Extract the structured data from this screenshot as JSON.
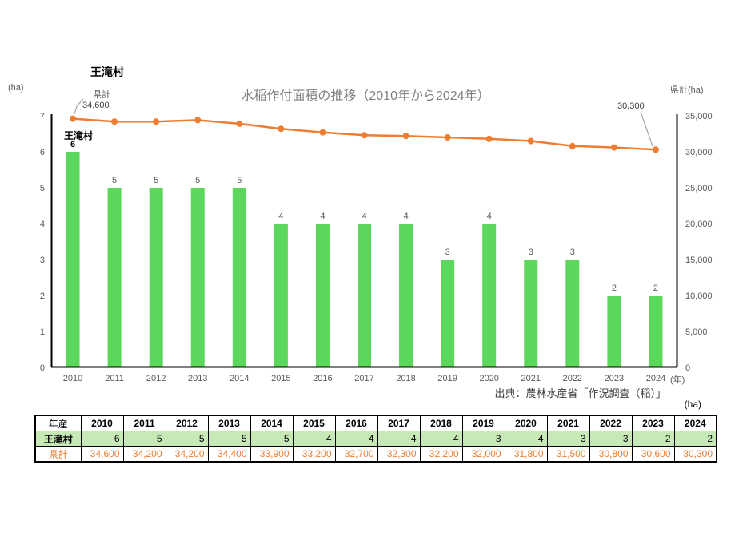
{
  "chart": {
    "small_title": "王滝村",
    "main_title": "水稲作付面積の推移（2010年から2024年）",
    "left_axis_unit": "(ha)",
    "right_axis_unit": "県計(ha)",
    "x_axis_unit": "(年)",
    "bar_series_label": "王滝村",
    "line_annotation_label": "県計",
    "line_annotation_first_value": "34,600",
    "line_annotation_last_value": "30,300",
    "source": "出典：農林水産省「作況調査（稲）」",
    "colors": {
      "bar": "#5bd75b",
      "line": "#ed7d31",
      "axis": "#000000",
      "tick_text": "#595959",
      "bar_label": "#595959",
      "first_bar_label": "#000000",
      "title_gray": "#7f7f7f",
      "leader": "#a6a6a6"
    }
  },
  "chart_data": {
    "type": "bar",
    "categories": [
      "2010",
      "2011",
      "2012",
      "2013",
      "2014",
      "2015",
      "2016",
      "2017",
      "2018",
      "2019",
      "2020",
      "2021",
      "2022",
      "2023",
      "2024"
    ],
    "series": [
      {
        "name": "王滝村",
        "type": "bar",
        "axis": "left",
        "values": [
          6,
          5,
          5,
          5,
          5,
          4,
          4,
          4,
          4,
          3,
          4,
          3,
          3,
          2,
          2
        ]
      },
      {
        "name": "県計",
        "type": "line",
        "axis": "right",
        "values": [
          34600,
          34200,
          34200,
          34400,
          33900,
          33200,
          32700,
          32300,
          32200,
          32000,
          31800,
          31500,
          30800,
          30600,
          30300
        ]
      }
    ],
    "title": "水稲作付面積の推移（2010年から2024年）",
    "xlabel": "(年)",
    "ylabel_left": "(ha)",
    "ylabel_right": "県計(ha)",
    "left_axis": {
      "min": 0,
      "max": 7,
      "step": 1
    },
    "right_axis": {
      "min": 0,
      "max": 35000,
      "step": 5000
    },
    "grid": false,
    "legend_position": "none"
  },
  "table": {
    "unit_label": "(ha)",
    "header_label": "年産",
    "years": [
      "2010",
      "2011",
      "2012",
      "2013",
      "2014",
      "2015",
      "2016",
      "2017",
      "2018",
      "2019",
      "2020",
      "2021",
      "2022",
      "2023",
      "2024"
    ],
    "rows": [
      {
        "label": "王滝村",
        "bold_label": true,
        "bg": "#c6e9b5",
        "text_color": "#000000",
        "values": [
          "6",
          "5",
          "5",
          "5",
          "5",
          "4",
          "4",
          "4",
          "4",
          "3",
          "4",
          "3",
          "3",
          "2",
          "2"
        ]
      },
      {
        "label": "県計",
        "bold_label": false,
        "bg": "#ffffff",
        "text_color": "#ed7d31",
        "values": [
          "34,600",
          "34,200",
          "34,200",
          "34,400",
          "33,900",
          "33,200",
          "32,700",
          "32,300",
          "32,200",
          "32,000",
          "31,800",
          "31,500",
          "30,800",
          "30,600",
          "30,300"
        ]
      }
    ]
  }
}
